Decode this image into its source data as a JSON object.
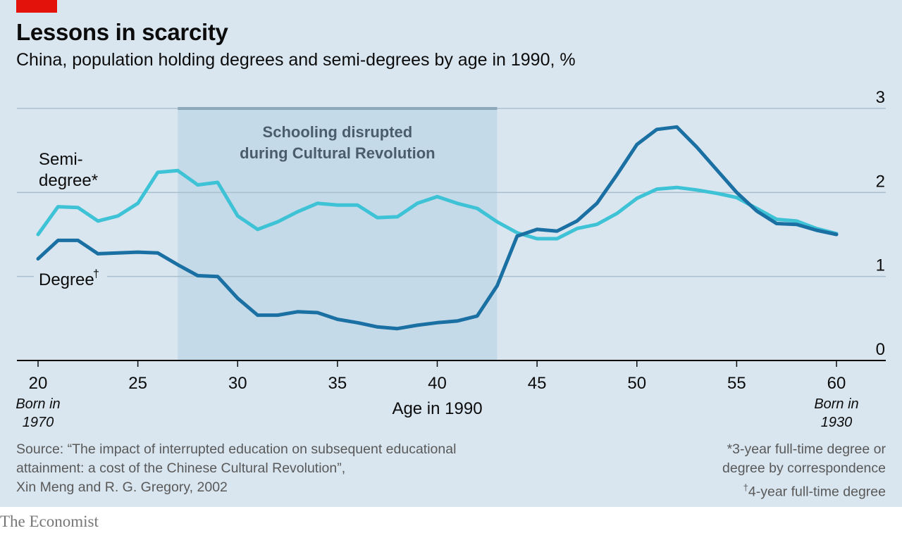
{
  "header": {
    "title": "Lessons in scarcity",
    "subtitle": "China, population holding degrees and semi-degrees by age in 1990, %"
  },
  "chart_data": {
    "type": "line",
    "xlabel": "Age in 1990",
    "ylabel": "",
    "xlim": [
      20,
      60
    ],
    "ylim": [
      0,
      3
    ],
    "x_ticks": [
      "20",
      "25",
      "30",
      "35",
      "40",
      "45",
      "50",
      "55",
      "60"
    ],
    "y_ticks": [
      "0",
      "1",
      "2",
      "3"
    ],
    "grid": "horizontal",
    "x": [
      20,
      21,
      22,
      23,
      24,
      25,
      26,
      27,
      28,
      29,
      30,
      31,
      32,
      33,
      34,
      35,
      36,
      37,
      38,
      39,
      40,
      41,
      42,
      43,
      44,
      45,
      46,
      47,
      48,
      49,
      50,
      51,
      52,
      53,
      54,
      55,
      56,
      57,
      58,
      59,
      60
    ],
    "series": [
      {
        "name": "Semi-degree*",
        "color": "#3ec2d6",
        "values": [
          1.5,
          1.83,
          1.82,
          1.66,
          1.72,
          1.87,
          2.24,
          2.26,
          2.09,
          2.12,
          1.72,
          1.56,
          1.65,
          1.77,
          1.87,
          1.85,
          1.85,
          1.7,
          1.71,
          1.87,
          1.95,
          1.87,
          1.81,
          1.65,
          1.52,
          1.45,
          1.45,
          1.57,
          1.62,
          1.75,
          1.93,
          2.04,
          2.06,
          2.03,
          1.99,
          1.94,
          1.81,
          1.68,
          1.66,
          1.57,
          1.51
        ]
      },
      {
        "name": "Degree†",
        "color": "#1a6fa3",
        "values": [
          1.21,
          1.43,
          1.43,
          1.27,
          1.28,
          1.29,
          1.28,
          1.14,
          1.01,
          1.0,
          0.74,
          0.54,
          0.54,
          0.58,
          0.57,
          0.49,
          0.45,
          0.4,
          0.38,
          0.42,
          0.45,
          0.47,
          0.53,
          0.89,
          1.48,
          1.56,
          1.54,
          1.66,
          1.87,
          2.21,
          2.57,
          2.75,
          2.78,
          2.54,
          2.27,
          2.0,
          1.78,
          1.63,
          1.62,
          1.55,
          1.5
        ]
      }
    ],
    "shaded_region": {
      "x0": 27,
      "x1": 43,
      "label_line1": "Schooling disrupted",
      "label_line2": "during Cultural Revolution"
    },
    "x_annotations": {
      "left_line1": "Born in",
      "left_line2": "1970",
      "right_line1": "Born in",
      "right_line2": "1930"
    },
    "series_labels": {
      "semi_line1": "Semi-",
      "semi_line2": "degree*",
      "degree": "Degree",
      "degree_mark": "†"
    }
  },
  "footer": {
    "source_line1": "Source: “The impact of interrupted education on subsequent educational",
    "source_line2": "attainment: a cost of the Chinese Cultural Revolution”,",
    "source_line3": "Xin Meng and R. G. Gregory, 2002",
    "note_line1": "*3-year full-time degree or",
    "note_line2": "degree by correspondence",
    "note_mark": "†",
    "note_line3": "4-year full-time degree",
    "logo": "The Economist"
  }
}
